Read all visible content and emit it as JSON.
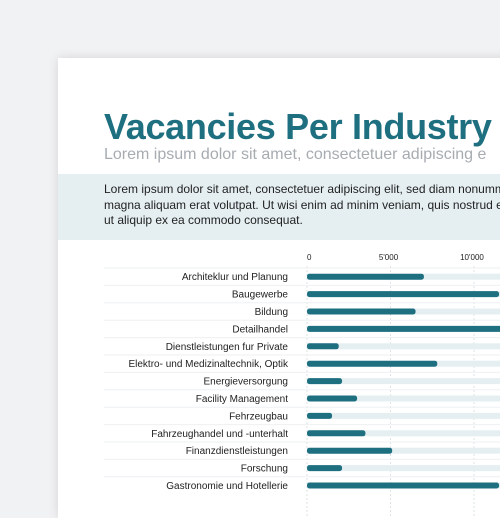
{
  "page": {
    "title": "Vacancies Per Industry",
    "subtitle": "Lorem ipsum dolor sit amet, consectetuer adipiscing e",
    "intro": "Lorem ipsum dolor sit amet, consectetuer adipiscing elit, sed diam nonumm magna aliquam erat volutpat. Ut wisi enim ad minim veniam, quis nostrud e nisl ut aliquip ex ea commodo consequat."
  },
  "colors": {
    "bar": "#1e6f80",
    "track": "#e5eff2",
    "title": "#1e6f80"
  },
  "chart_data": {
    "type": "bar",
    "orientation": "horizontal",
    "title": "",
    "xlabel": "",
    "ylabel": "",
    "xlim": [
      0,
      10000
    ],
    "xticks": [
      0,
      5000,
      10000
    ],
    "xtick_labels": [
      "0",
      "5'000",
      "10'000"
    ],
    "grid": true,
    "categories": [
      "Architeklur und Planung",
      "Baugewerbe",
      "Bildung",
      "Detailhandel",
      "Dienstleistungen fur Private",
      "Elektro- und Medizinaltechnik, Optik",
      "Energieversorgung",
      "Facility Management",
      "Fehrzeugbau",
      "Fahrzeughandel und -unterhalt",
      "Finanzdienstleistungen",
      "Forschung",
      "Gastronomie und Hotellerie"
    ],
    "values": [
      7000,
      11500,
      6500,
      12000,
      1900,
      7800,
      2100,
      3000,
      1500,
      3500,
      5100,
      2100,
      11500
    ]
  }
}
